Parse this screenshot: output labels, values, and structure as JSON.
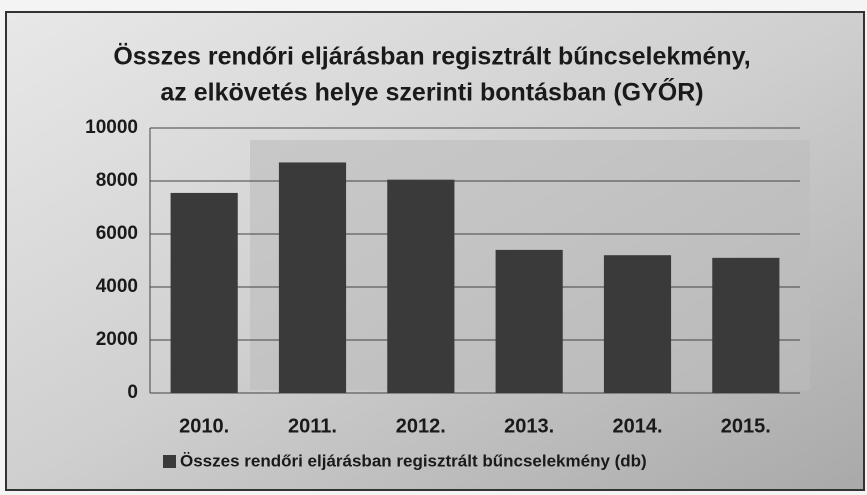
{
  "chart_data": {
    "type": "bar",
    "title": [
      "Összes rendőri eljárásban regisztrált bűncselekmény,",
      "az elkövetés helye szerinti bontásban (GYŐR)"
    ],
    "categories": [
      "2010.",
      "2011.",
      "2012.",
      "2013.",
      "2014.",
      "2015."
    ],
    "series": [
      {
        "name": "Összes rendőri eljárásban regisztrált bűncselekmény (db)",
        "color": "#3a3a3a",
        "values": [
          7550,
          8700,
          8050,
          5400,
          5200,
          5100
        ]
      }
    ],
    "ylim": [
      0,
      10000
    ],
    "yticks": [
      0,
      2000,
      4000,
      6000,
      8000,
      10000
    ],
    "grid": true,
    "legend": "bottom"
  }
}
